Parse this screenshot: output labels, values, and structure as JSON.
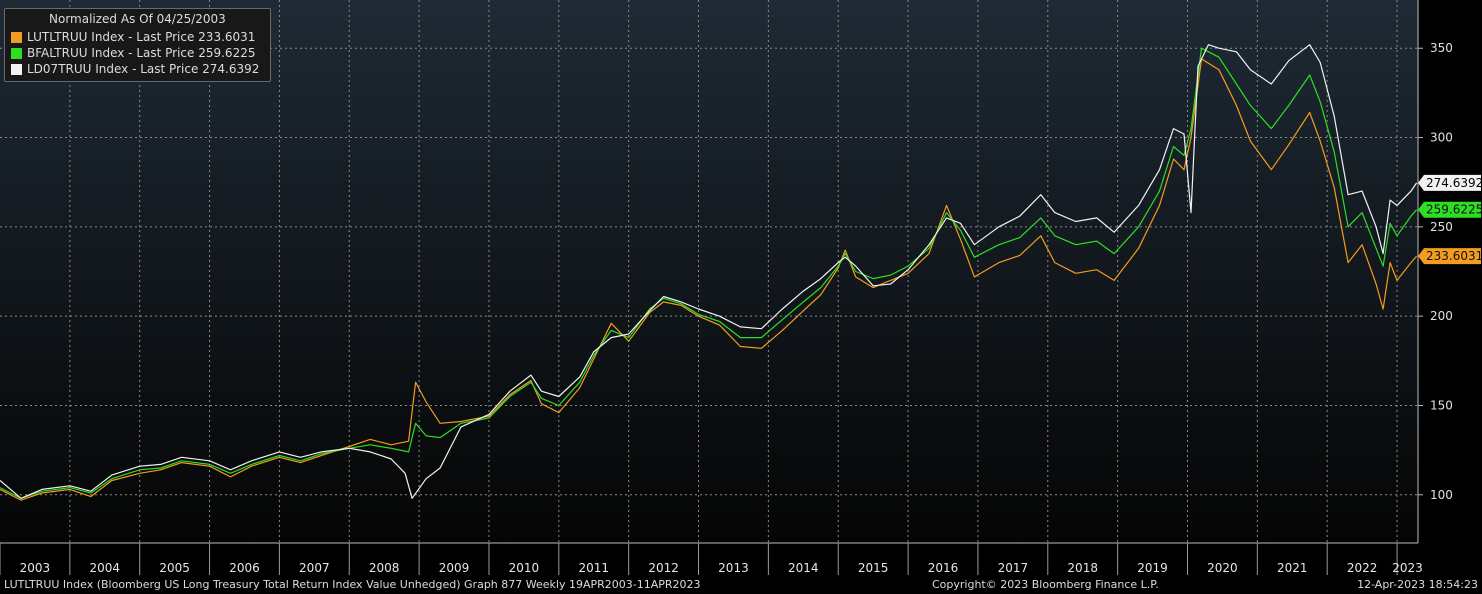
{
  "chart_data": {
    "type": "line",
    "title": "Normalized As Of 04/25/2003",
    "xlabel": "",
    "ylabel": "",
    "xlim": [
      2003.0,
      2023.3
    ],
    "ylim": [
      73,
      377
    ],
    "grid": true,
    "legend_position": "top-left",
    "y_ticks": [
      100,
      150,
      200,
      250,
      300,
      350
    ],
    "x_tick_labels": [
      "2003",
      "2004",
      "2005",
      "2006",
      "2007",
      "2008",
      "2009",
      "2010",
      "2011",
      "2012",
      "2013",
      "2014",
      "2015",
      "2016",
      "2017",
      "2018",
      "2019",
      "2020",
      "2021",
      "2022",
      "2023"
    ],
    "series": [
      {
        "name": "LUTLTRUU Index - Last Price 233.6031",
        "color": "#f39c1f",
        "last_label": "233.6031",
        "points": [
          [
            2003.0,
            103
          ],
          [
            2003.3,
            97
          ],
          [
            2003.6,
            101
          ],
          [
            2004.0,
            103
          ],
          [
            2004.3,
            99
          ],
          [
            2004.6,
            108
          ],
          [
            2005.0,
            112
          ],
          [
            2005.3,
            114
          ],
          [
            2005.6,
            118
          ],
          [
            2006.0,
            116
          ],
          [
            2006.3,
            110
          ],
          [
            2006.6,
            116
          ],
          [
            2007.0,
            121
          ],
          [
            2007.3,
            118
          ],
          [
            2007.6,
            122
          ],
          [
            2008.0,
            127
          ],
          [
            2008.3,
            131
          ],
          [
            2008.6,
            128
          ],
          [
            2008.85,
            130
          ],
          [
            2008.95,
            163
          ],
          [
            2009.1,
            152
          ],
          [
            2009.3,
            140
          ],
          [
            2009.6,
            141
          ],
          [
            2010.0,
            144
          ],
          [
            2010.3,
            156
          ],
          [
            2010.6,
            164
          ],
          [
            2010.75,
            151
          ],
          [
            2011.0,
            146
          ],
          [
            2011.3,
            160
          ],
          [
            2011.5,
            176
          ],
          [
            2011.75,
            196
          ],
          [
            2012.0,
            186
          ],
          [
            2012.3,
            202
          ],
          [
            2012.5,
            208
          ],
          [
            2012.75,
            206
          ],
          [
            2013.0,
            200
          ],
          [
            2013.3,
            195
          ],
          [
            2013.6,
            183
          ],
          [
            2013.9,
            182
          ],
          [
            2014.2,
            192
          ],
          [
            2014.5,
            203
          ],
          [
            2014.75,
            212
          ],
          [
            2015.0,
            227
          ],
          [
            2015.1,
            237
          ],
          [
            2015.25,
            222
          ],
          [
            2015.5,
            216
          ],
          [
            2015.75,
            220
          ],
          [
            2016.0,
            224
          ],
          [
            2016.3,
            235
          ],
          [
            2016.55,
            262
          ],
          [
            2016.75,
            243
          ],
          [
            2016.95,
            222
          ],
          [
            2017.3,
            230
          ],
          [
            2017.6,
            234
          ],
          [
            2017.9,
            245
          ],
          [
            2018.1,
            230
          ],
          [
            2018.4,
            224
          ],
          [
            2018.7,
            226
          ],
          [
            2018.95,
            220
          ],
          [
            2019.3,
            238
          ],
          [
            2019.6,
            262
          ],
          [
            2019.8,
            288
          ],
          [
            2019.95,
            282
          ],
          [
            2020.05,
            300
          ],
          [
            2020.2,
            344
          ],
          [
            2020.45,
            338
          ],
          [
            2020.7,
            318
          ],
          [
            2020.9,
            298
          ],
          [
            2021.2,
            282
          ],
          [
            2021.45,
            296
          ],
          [
            2021.75,
            314
          ],
          [
            2021.9,
            298
          ],
          [
            2022.1,
            272
          ],
          [
            2022.3,
            230
          ],
          [
            2022.5,
            240
          ],
          [
            2022.7,
            218
          ],
          [
            2022.8,
            204
          ],
          [
            2022.9,
            230
          ],
          [
            2023.0,
            220
          ],
          [
            2023.2,
            230
          ],
          [
            2023.28,
            233.6
          ]
        ]
      },
      {
        "name": "BFALTRUU Index - Last Price 259.6225",
        "color": "#2fdd24",
        "last_label": "259.6225",
        "points": [
          [
            2003.0,
            104
          ],
          [
            2003.3,
            98
          ],
          [
            2003.6,
            102
          ],
          [
            2004.0,
            104
          ],
          [
            2004.3,
            101
          ],
          [
            2004.6,
            109
          ],
          [
            2005.0,
            114
          ],
          [
            2005.3,
            115
          ],
          [
            2005.6,
            119
          ],
          [
            2006.0,
            117
          ],
          [
            2006.3,
            112
          ],
          [
            2006.6,
            117
          ],
          [
            2007.0,
            122
          ],
          [
            2007.3,
            119
          ],
          [
            2007.6,
            123
          ],
          [
            2008.0,
            126
          ],
          [
            2008.3,
            128
          ],
          [
            2008.6,
            126
          ],
          [
            2008.85,
            124
          ],
          [
            2008.95,
            140
          ],
          [
            2009.1,
            133
          ],
          [
            2009.3,
            132
          ],
          [
            2009.6,
            140
          ],
          [
            2010.0,
            143
          ],
          [
            2010.3,
            155
          ],
          [
            2010.6,
            163
          ],
          [
            2010.75,
            154
          ],
          [
            2011.0,
            150
          ],
          [
            2011.3,
            163
          ],
          [
            2011.5,
            178
          ],
          [
            2011.75,
            192
          ],
          [
            2012.0,
            188
          ],
          [
            2012.3,
            204
          ],
          [
            2012.5,
            210
          ],
          [
            2012.75,
            207
          ],
          [
            2013.0,
            201
          ],
          [
            2013.3,
            197
          ],
          [
            2013.6,
            188
          ],
          [
            2013.9,
            188
          ],
          [
            2014.2,
            198
          ],
          [
            2014.5,
            208
          ],
          [
            2014.75,
            216
          ],
          [
            2015.0,
            228
          ],
          [
            2015.1,
            235
          ],
          [
            2015.25,
            225
          ],
          [
            2015.5,
            221
          ],
          [
            2015.75,
            223
          ],
          [
            2016.0,
            228
          ],
          [
            2016.3,
            238
          ],
          [
            2016.55,
            258
          ],
          [
            2016.75,
            248
          ],
          [
            2016.95,
            233
          ],
          [
            2017.3,
            240
          ],
          [
            2017.6,
            244
          ],
          [
            2017.9,
            255
          ],
          [
            2018.1,
            245
          ],
          [
            2018.4,
            240
          ],
          [
            2018.7,
            242
          ],
          [
            2018.95,
            235
          ],
          [
            2019.3,
            250
          ],
          [
            2019.6,
            270
          ],
          [
            2019.8,
            295
          ],
          [
            2019.95,
            290
          ],
          [
            2020.05,
            305
          ],
          [
            2020.2,
            350
          ],
          [
            2020.45,
            345
          ],
          [
            2020.7,
            330
          ],
          [
            2020.9,
            318
          ],
          [
            2021.2,
            305
          ],
          [
            2021.45,
            318
          ],
          [
            2021.75,
            335
          ],
          [
            2021.9,
            320
          ],
          [
            2022.1,
            292
          ],
          [
            2022.3,
            250
          ],
          [
            2022.5,
            258
          ],
          [
            2022.7,
            238
          ],
          [
            2022.8,
            228
          ],
          [
            2022.9,
            252
          ],
          [
            2023.0,
            245
          ],
          [
            2023.2,
            256
          ],
          [
            2023.28,
            259.6
          ]
        ]
      },
      {
        "name": "LD07TRUU Index - Last Price 274.6392",
        "color": "#f2f2f2",
        "last_label": "274.6392",
        "points": [
          [
            2003.0,
            108
          ],
          [
            2003.3,
            98
          ],
          [
            2003.6,
            103
          ],
          [
            2004.0,
            105
          ],
          [
            2004.3,
            102
          ],
          [
            2004.6,
            111
          ],
          [
            2005.0,
            116
          ],
          [
            2005.3,
            117
          ],
          [
            2005.6,
            121
          ],
          [
            2006.0,
            119
          ],
          [
            2006.3,
            114
          ],
          [
            2006.6,
            119
          ],
          [
            2007.0,
            124
          ],
          [
            2007.3,
            121
          ],
          [
            2007.6,
            124
          ],
          [
            2008.0,
            126
          ],
          [
            2008.3,
            124
          ],
          [
            2008.6,
            120
          ],
          [
            2008.8,
            112
          ],
          [
            2008.9,
            98
          ],
          [
            2009.1,
            109
          ],
          [
            2009.3,
            115
          ],
          [
            2009.6,
            138
          ],
          [
            2010.0,
            145
          ],
          [
            2010.3,
            158
          ],
          [
            2010.6,
            167
          ],
          [
            2010.75,
            158
          ],
          [
            2011.0,
            155
          ],
          [
            2011.3,
            166
          ],
          [
            2011.5,
            180
          ],
          [
            2011.75,
            188
          ],
          [
            2012.0,
            190
          ],
          [
            2012.3,
            203
          ],
          [
            2012.5,
            211
          ],
          [
            2012.75,
            208
          ],
          [
            2013.0,
            204
          ],
          [
            2013.3,
            200
          ],
          [
            2013.6,
            194
          ],
          [
            2013.9,
            193
          ],
          [
            2014.2,
            204
          ],
          [
            2014.5,
            214
          ],
          [
            2014.75,
            221
          ],
          [
            2015.0,
            230
          ],
          [
            2015.1,
            233
          ],
          [
            2015.25,
            228
          ],
          [
            2015.5,
            217
          ],
          [
            2015.75,
            218
          ],
          [
            2016.0,
            226
          ],
          [
            2016.3,
            240
          ],
          [
            2016.55,
            255
          ],
          [
            2016.75,
            252
          ],
          [
            2016.95,
            240
          ],
          [
            2017.3,
            250
          ],
          [
            2017.6,
            256
          ],
          [
            2017.9,
            268
          ],
          [
            2018.1,
            258
          ],
          [
            2018.4,
            253
          ],
          [
            2018.7,
            255
          ],
          [
            2018.95,
            247
          ],
          [
            2019.3,
            262
          ],
          [
            2019.6,
            282
          ],
          [
            2019.8,
            305
          ],
          [
            2019.95,
            302
          ],
          [
            2020.05,
            258
          ],
          [
            2020.15,
            340
          ],
          [
            2020.3,
            352
          ],
          [
            2020.45,
            350
          ],
          [
            2020.7,
            348
          ],
          [
            2020.9,
            338
          ],
          [
            2021.2,
            330
          ],
          [
            2021.45,
            343
          ],
          [
            2021.75,
            352
          ],
          [
            2021.9,
            342
          ],
          [
            2022.1,
            312
          ],
          [
            2022.3,
            268
          ],
          [
            2022.5,
            270
          ],
          [
            2022.7,
            250
          ],
          [
            2022.8,
            235
          ],
          [
            2022.9,
            265
          ],
          [
            2023.0,
            262
          ],
          [
            2023.2,
            270
          ],
          [
            2023.28,
            274.6
          ]
        ]
      }
    ]
  },
  "footer": {
    "left": "LUTLTRUU Index (Bloomberg US Long Treasury Total Return Index Value Unhedged) Graph 877  Weekly 19APR2003-11APR2023",
    "center": "Copyright© 2023 Bloomberg Finance L.P.",
    "right": "12-Apr-2023 18:54:23"
  }
}
